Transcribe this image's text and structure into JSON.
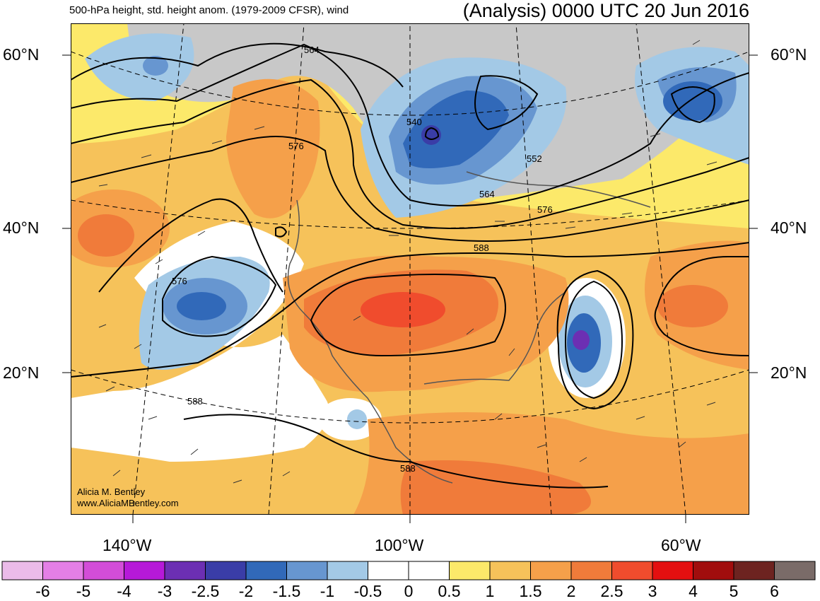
{
  "header": {
    "left_title": "500-hPa height, std. height anom. (1979-2009 CFSR), wind",
    "right_title": "(Analysis) 0000 UTC 20 Jun 2016"
  },
  "axes": {
    "lat_labels": [
      "60°N",
      "40°N",
      "20°N"
    ],
    "lon_labels": [
      "140°W",
      "100°W",
      "60°W"
    ]
  },
  "credit": {
    "name": "Alicia M. Bentley",
    "url": "www.AliciaMBentley.com"
  },
  "contour_labels": [
    "564",
    "540",
    "576",
    "552",
    "564",
    "576",
    "588",
    "576",
    "588",
    "588"
  ],
  "colorbar": {
    "colors": [
      "#ebbbe9",
      "#e47fe6",
      "#d34dd8",
      "#b619d8",
      "#6c2fb3",
      "#3a3da7",
      "#3169b9",
      "#6796d0",
      "#a3c9e6",
      "#ffffff",
      "#ffffff",
      "#fce96a",
      "#f6c25a",
      "#f5a04a",
      "#f07b3a",
      "#f04c2d",
      "#e40f10",
      "#a10d0d",
      "#6d2320",
      "#7a6b68"
    ],
    "labels": [
      "-6",
      "-5",
      "-4",
      "-3",
      "-2.5",
      "-2",
      "-1.5",
      "-1",
      "-0.5",
      "0",
      "0.5",
      "1",
      "1.5",
      "2",
      "2.5",
      "3",
      "4",
      "5",
      "6"
    ]
  },
  "colors": {
    "land_gray": "#c8c8c8",
    "contour": "#000000"
  }
}
